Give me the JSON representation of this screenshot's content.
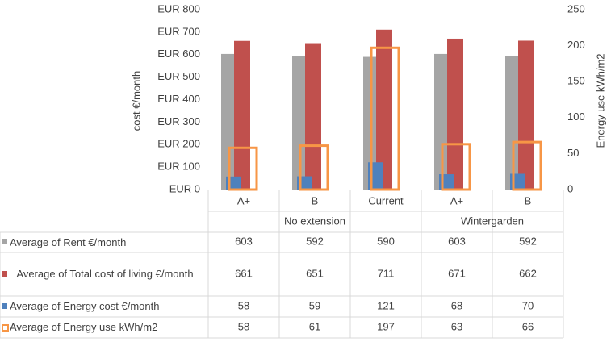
{
  "chart_data": {
    "type": "bar",
    "y_label": "cost €/month",
    "y2_label": "Energy use kWh/m2",
    "categories": [
      "A+",
      "B",
      "Current",
      "A+",
      "B"
    ],
    "groups": [
      {
        "label": "No extension",
        "count": 3
      },
      {
        "label": "Wintergarden",
        "count": 2
      }
    ],
    "ylim": [
      0,
      800
    ],
    "yticks": [
      {
        "value": 0,
        "label": "EUR 0"
      },
      {
        "value": 100,
        "label": "EUR 100"
      },
      {
        "value": 200,
        "label": "EUR 200"
      },
      {
        "value": 300,
        "label": "EUR 300"
      },
      {
        "value": 400,
        "label": "EUR 400"
      },
      {
        "value": 500,
        "label": "EUR 500"
      },
      {
        "value": 600,
        "label": "EUR 600"
      },
      {
        "value": 700,
        "label": "EUR 700"
      },
      {
        "value": 800,
        "label": "EUR 800"
      }
    ],
    "y2lim": [
      0,
      250
    ],
    "y2ticks": [
      0,
      50,
      100,
      150,
      200,
      250
    ],
    "series": [
      {
        "name": "Average of Rent €/month",
        "color": "#a5a5a5",
        "values": [
          603,
          592,
          590,
          603,
          592
        ]
      },
      {
        "name": "Average of Total cost of living €/month",
        "color": "#c0504d",
        "values": [
          661,
          651,
          711,
          671,
          662
        ]
      },
      {
        "name": "Average of Energy cost €/month",
        "color": "#4f81bd",
        "values": [
          58,
          59,
          121,
          68,
          70
        ]
      },
      {
        "name": "Average of Energy use kWh/m2",
        "color": "#f79646",
        "axis": "y2",
        "values": [
          58,
          61,
          197,
          63,
          66
        ]
      }
    ]
  }
}
